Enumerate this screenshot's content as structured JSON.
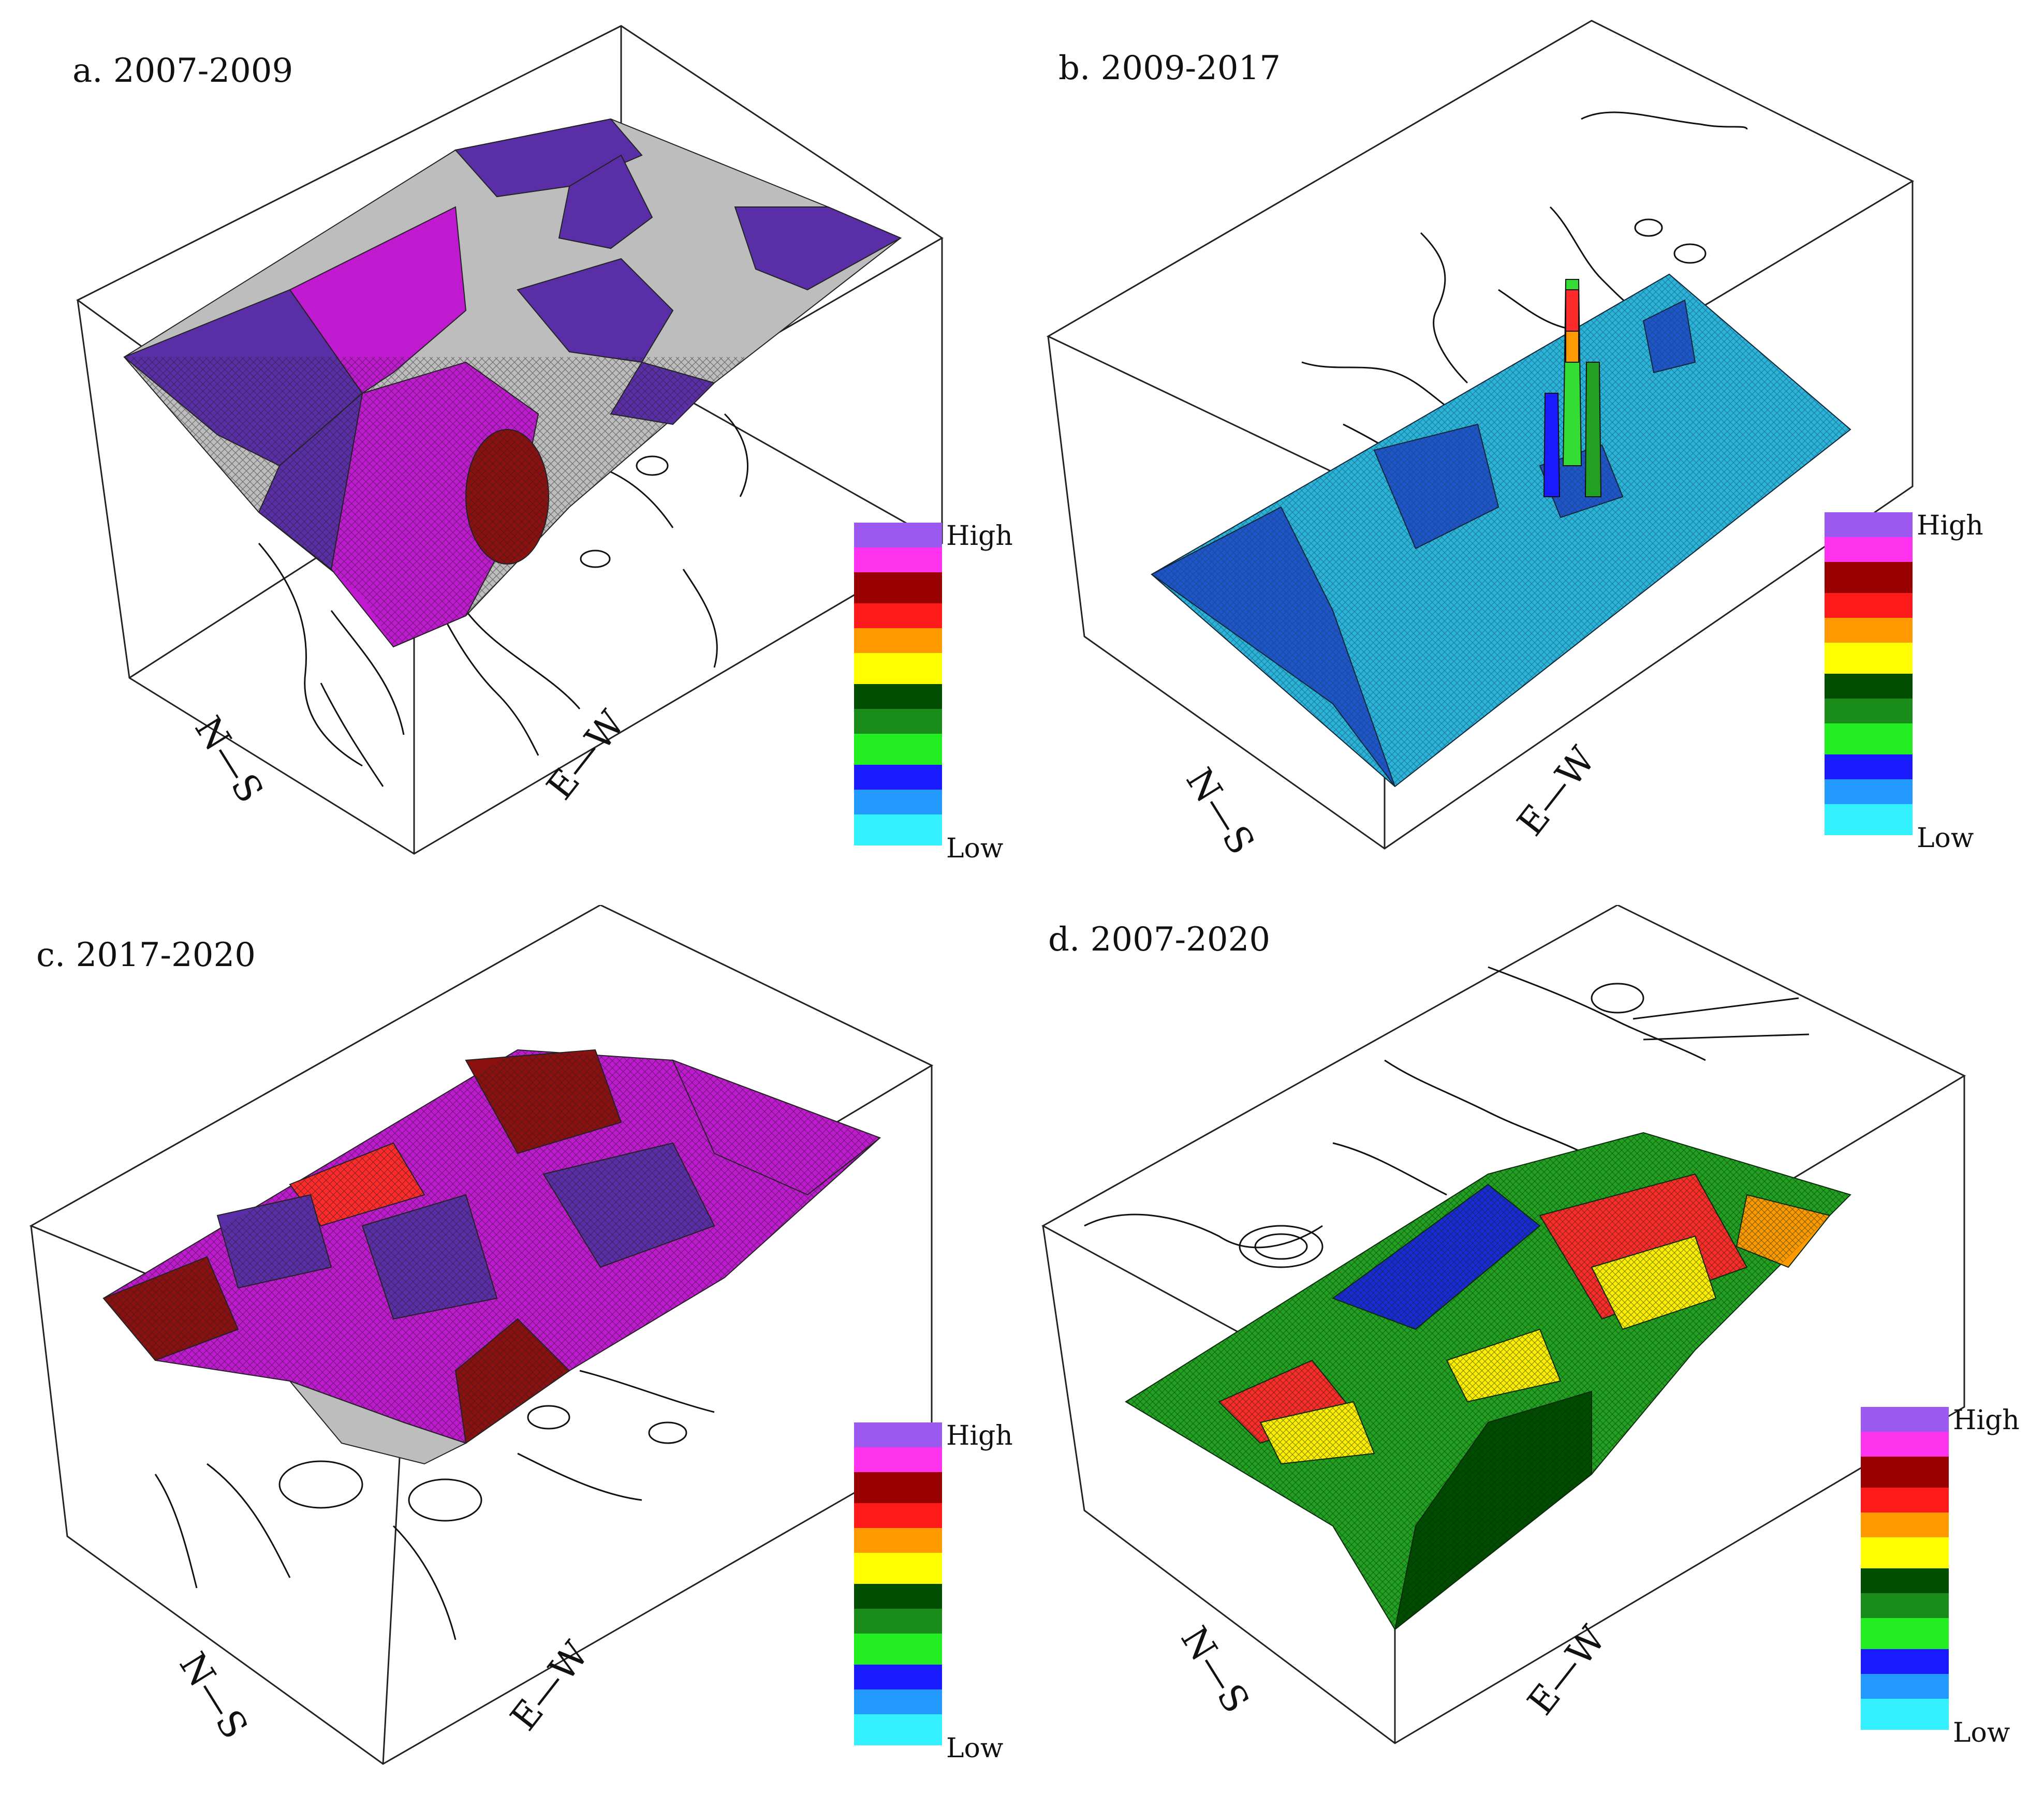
{
  "panels": [
    {
      "label": "a. 2007-2009"
    },
    {
      "label": "b. 2009-2017"
    },
    {
      "label": "c. 2017-2020"
    },
    {
      "label": "d. 2007-2020"
    }
  ],
  "axes": {
    "ns": "N—S",
    "ew": "E—W"
  },
  "legend": {
    "high_label": "High",
    "low_label": "Low",
    "colors_high_to_low": [
      "#9b59f0",
      "#ff33ee",
      "#990000",
      "#ff1a1a",
      "#ff9900",
      "#ffff00",
      "#004d00",
      "#1a8c1a",
      "#22ee22",
      "#1a1aff",
      "#2299ff",
      "#33f0ff"
    ]
  },
  "palette": {
    "a": {
      "primary": "#5a2ea6",
      "secondary": "#c01ad0",
      "accent": "#8b1010",
      "base": "#bdbdbd"
    },
    "b": {
      "primary": "#2cb4d8",
      "secondary": "#1f55c8",
      "accent": "#ff2a2a",
      "peak": "#33dd33"
    },
    "c": {
      "primary": "#c01ad0",
      "secondary": "#5a2ea6",
      "accent": "#8b1010",
      "base": "#bdbdbd"
    },
    "d": {
      "primary": "#22a022",
      "secondary": "#1a2ad8",
      "accent": "#ff2a2a",
      "highlight": "#ffee00"
    }
  }
}
